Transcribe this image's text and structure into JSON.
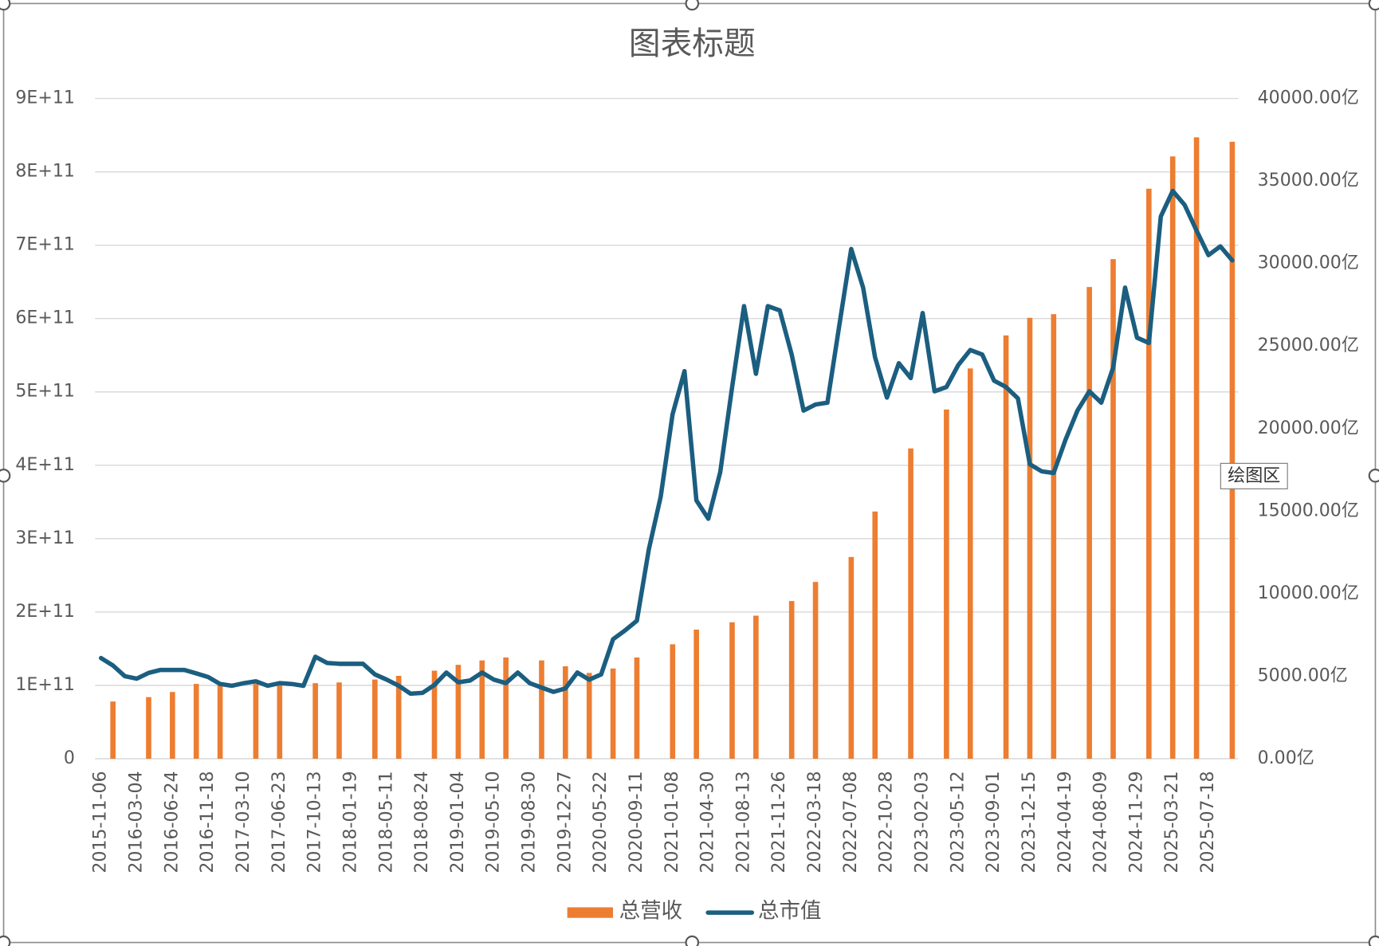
{
  "chart_data": {
    "type": "bar",
    "title": "图表标题",
    "tooltip": "绘图区",
    "categories": [
      "2015-11-06",
      null,
      null,
      "2016-03-04",
      null,
      null,
      "2016-06-24",
      null,
      null,
      "2016-11-18",
      null,
      null,
      "2017-03-10",
      null,
      null,
      "2017-06-23",
      null,
      null,
      "2017-10-13",
      null,
      null,
      "2018-01-19",
      null,
      null,
      "2018-05-11",
      null,
      null,
      "2018-08-24",
      null,
      null,
      "2019-01-04",
      null,
      null,
      "2019-05-10",
      null,
      null,
      "2019-08-30",
      null,
      null,
      "2019-12-27",
      null,
      null,
      "2020-05-22",
      null,
      null,
      "2020-09-11",
      null,
      null,
      "2021-01-08",
      null,
      null,
      "2021-04-30",
      null,
      null,
      "2021-08-13",
      null,
      null,
      "2021-11-26",
      null,
      null,
      "2022-03-18",
      null,
      null,
      "2022-07-08",
      null,
      null,
      "2022-10-28",
      null,
      null,
      "2023-02-03",
      null,
      null,
      "2023-05-12",
      null,
      null,
      "2023-09-01",
      null,
      null,
      "2023-12-15",
      null,
      null,
      "2024-04-19",
      null,
      null,
      "2024-08-09",
      null,
      null,
      "2024-11-29",
      null,
      null,
      "2025-03-21",
      null,
      null,
      "2025-07-18",
      null,
      null
    ],
    "series": [
      {
        "name": "总营收",
        "type": "bar",
        "color": "#ed7d31",
        "axis": "y",
        "values": [
          null,
          78000000000.0,
          null,
          null,
          84000000000.0,
          null,
          91000000000.0,
          null,
          102000000000.0,
          null,
          100000000000.0,
          null,
          null,
          102000000000.0,
          null,
          102000000000.0,
          null,
          null,
          103000000000.0,
          null,
          104000000000.0,
          null,
          null,
          108000000000.0,
          null,
          113000000000.0,
          null,
          null,
          120000000000.0,
          null,
          128000000000.0,
          null,
          134000000000.0,
          null,
          138000000000.0,
          null,
          null,
          134000000000.0,
          null,
          126000000000.0,
          null,
          117000000000.0,
          null,
          123000000000.0,
          null,
          138000000000.0,
          null,
          null,
          156000000000.0,
          null,
          176000000000.0,
          null,
          null,
          186000000000.0,
          null,
          195000000000.0,
          null,
          null,
          215000000000.0,
          null,
          241000000000.0,
          null,
          null,
          275000000000.0,
          null,
          337000000000.0,
          null,
          null,
          423000000000.0,
          null,
          null,
          476000000000.0,
          null,
          532000000000.0,
          null,
          null,
          577000000000.0,
          null,
          601000000000.0,
          null,
          606000000000.0,
          null,
          null,
          643000000000.0,
          null,
          681000000000.0,
          null,
          null,
          777000000000.0,
          null,
          821000000000.0,
          null,
          847000000000.0,
          null,
          null,
          841000000000.0
        ]
      },
      {
        "name": "总市值",
        "type": "line",
        "color": "#1b5e80",
        "axis": "y2",
        "values": [
          6100,
          5650,
          5000,
          4850,
          5200,
          5380,
          5380,
          5380,
          5170,
          4950,
          4530,
          4420,
          4580,
          4690,
          4420,
          4580,
          4530,
          4420,
          6180,
          5800,
          5750,
          5750,
          5750,
          5110,
          4790,
          4420,
          3940,
          3990,
          4470,
          5220,
          4630,
          4740,
          5220,
          4790,
          4580,
          5220,
          4580,
          4310,
          4050,
          4260,
          5220,
          4790,
          5110,
          7240,
          7770,
          8360,
          12670,
          15870,
          20870,
          23480,
          15650,
          14540,
          17360,
          22520,
          27420,
          23320,
          27420,
          27160,
          24490,
          21090,
          21460,
          21570,
          26250,
          30880,
          28540,
          24330,
          21880,
          23960,
          23060,
          27000,
          22260,
          22520,
          23860,
          24760,
          24490,
          22900,
          22520,
          21830,
          17840,
          17410,
          17310,
          19330,
          21090,
          22260,
          21570,
          23700,
          28540,
          25510,
          25190,
          32850,
          34400,
          33550,
          32000,
          30510,
          31040,
          30190
        ]
      }
    ],
    "ylim": [
      0,
      900000000000
    ],
    "yticks": [
      0,
      {
        "value": 100000000000,
        "label": "1E+11"
      },
      {
        "value": 200000000000,
        "label": "2E+11"
      },
      {
        "value": 300000000000,
        "label": "3E+11"
      },
      {
        "value": 400000000000,
        "label": "4E+11"
      },
      {
        "value": 500000000000,
        "label": "5E+11"
      },
      {
        "value": 600000000000,
        "label": "6E+11"
      },
      {
        "value": 700000000000,
        "label": "7E+11"
      },
      {
        "value": 800000000000,
        "label": "8E+11"
      },
      {
        "value": 900000000000,
        "label": "9E+11"
      }
    ],
    "y2lim": [
      0,
      40000
    ],
    "y2ticks": [
      {
        "value": 0,
        "label": "0.00亿"
      },
      {
        "value": 5000,
        "label": "5000.00亿"
      },
      {
        "value": 10000,
        "label": "10000.00亿"
      },
      {
        "value": 15000,
        "label": "15000.00亿"
      },
      {
        "value": 20000,
        "label": "20000.00亿"
      },
      {
        "value": 25000,
        "label": "25000.00亿"
      },
      {
        "value": 30000,
        "label": "30000.00亿"
      },
      {
        "value": 35000,
        "label": "35000.00亿"
      },
      {
        "value": 40000,
        "label": "40000.00亿"
      }
    ],
    "grid": true,
    "legend": "bottom"
  }
}
